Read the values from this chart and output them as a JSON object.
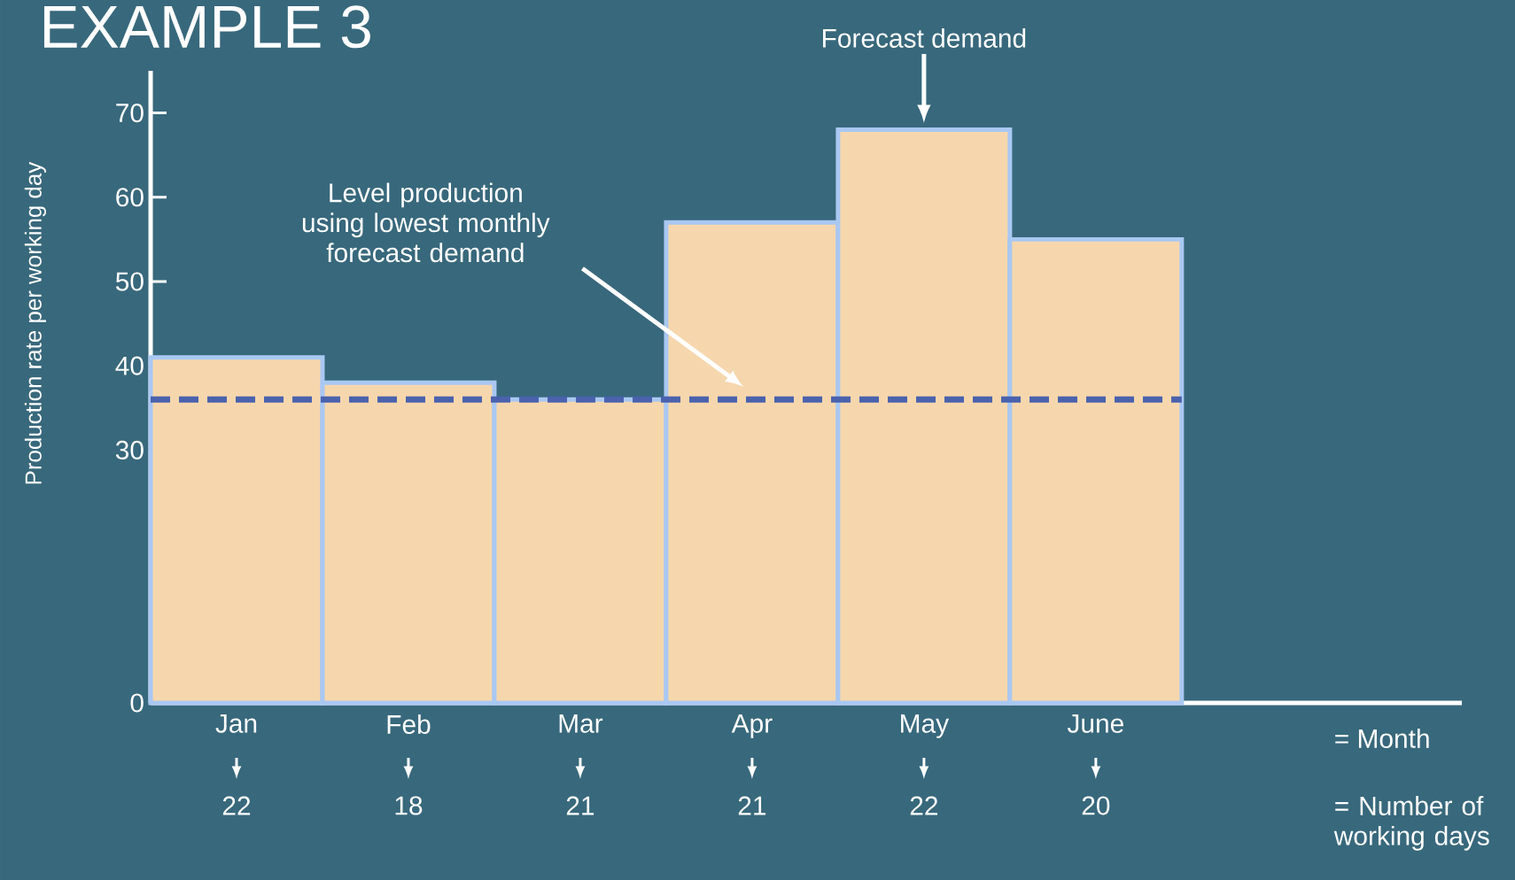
{
  "chart_data": {
    "type": "bar",
    "title": "EXAMPLE 3",
    "ylabel": "Production rate per working day",
    "categories": [
      "Jan",
      "Feb",
      "Mar",
      "Apr",
      "May",
      "June"
    ],
    "values": [
      41,
      38,
      36,
      57,
      68,
      55
    ],
    "color": "#f6d7ad",
    "ylim": [
      0,
      75
    ],
    "yticks": [
      0,
      30,
      40,
      50,
      60,
      70
    ],
    "grid": false,
    "ref_lines": [
      {
        "axis": "y",
        "value": 36,
        "color": "#4a62ad",
        "line_style": "dashed"
      }
    ],
    "annotations": [
      "Forecast demand",
      "Level production using lowest monthly forecast demand",
      "22",
      "18",
      "21",
      "21",
      "22",
      "20",
      "= Month",
      "= Number of working days"
    ]
  }
}
